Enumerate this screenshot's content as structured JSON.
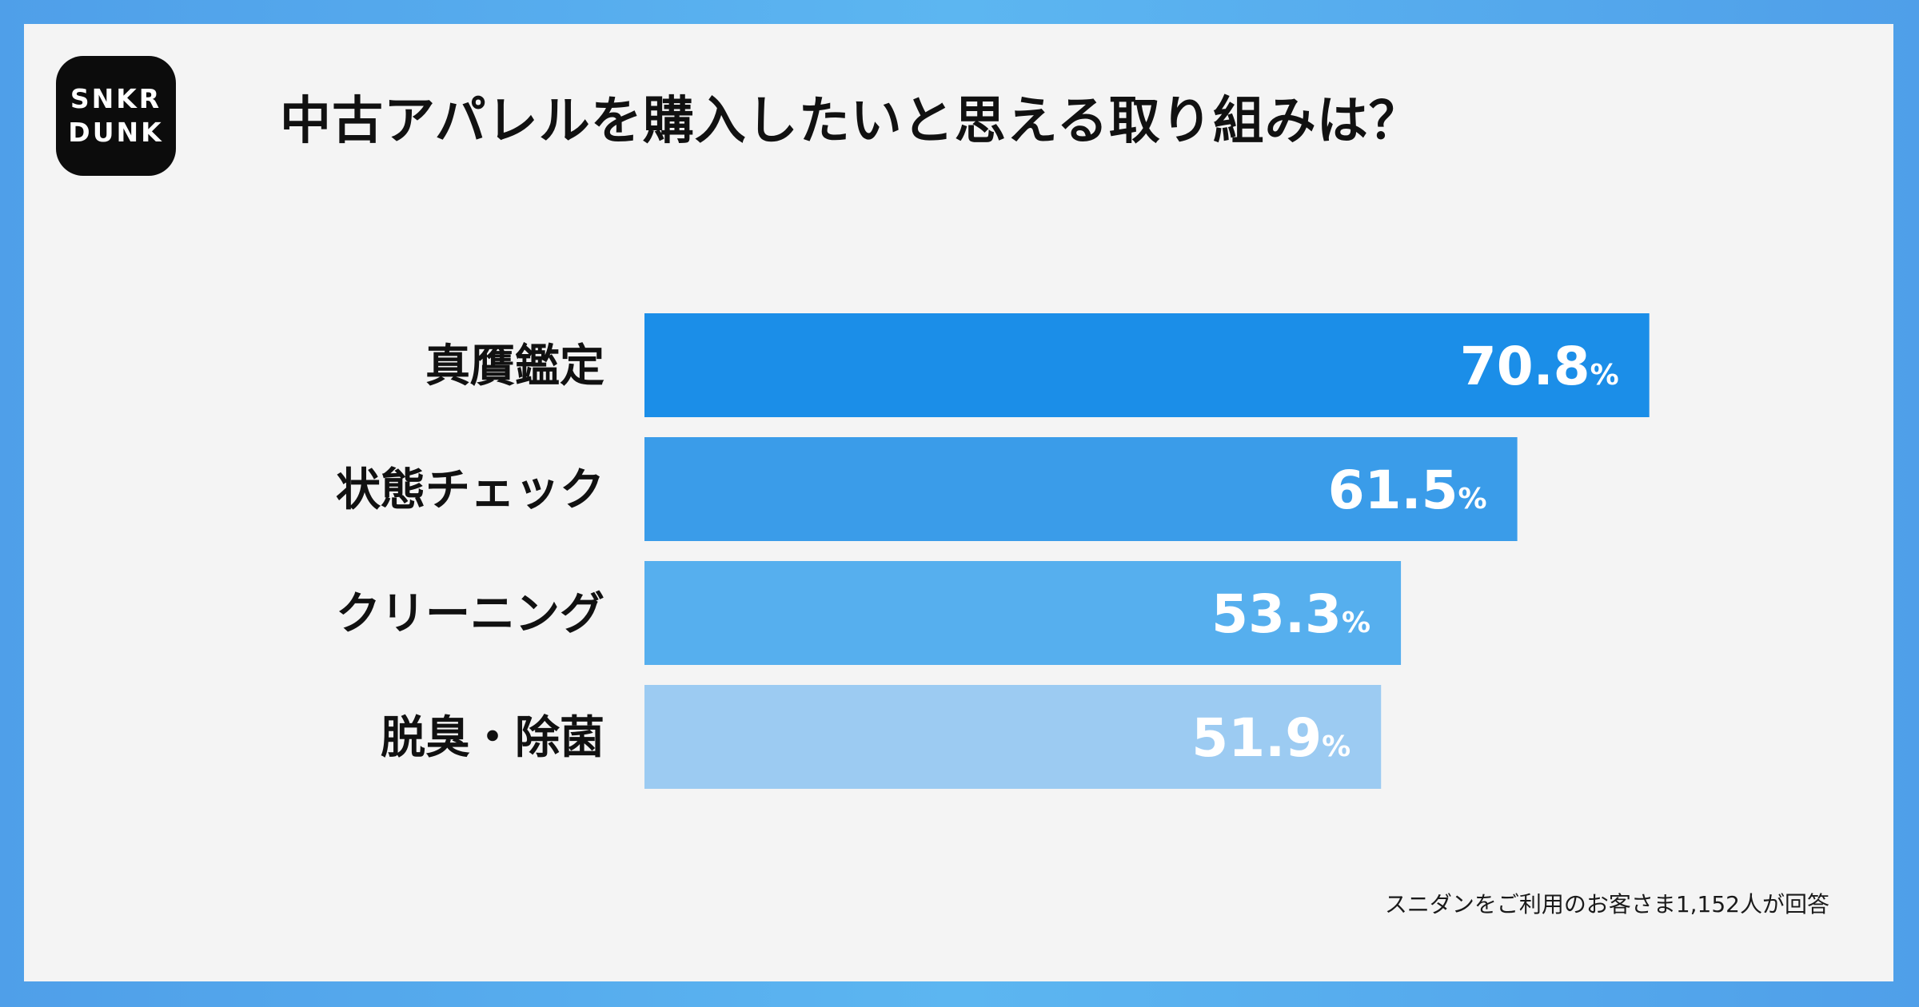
{
  "logo": {
    "line1": "SNKR",
    "line2": "DUNK"
  },
  "colors": {
    "bars": [
      "#1b8ee8",
      "#3a9ce9",
      "#56afee",
      "#9ccbf2"
    ],
    "label": "#111111",
    "value": "#ffffff"
  },
  "chart_data": {
    "type": "bar",
    "orientation": "horizontal",
    "title": "中古アパレルを購入したいと思える取り組みは？",
    "categories": [
      "真贋鑑定",
      "状態チェック",
      "クリーニング",
      "脱臭・除菌"
    ],
    "values": [
      70.8,
      61.5,
      53.3,
      51.9
    ],
    "value_labels": [
      "70.8",
      "61.5",
      "53.3",
      "51.9"
    ],
    "unit": "%",
    "xlim": [
      0,
      100
    ],
    "grid": false,
    "legend": "none"
  },
  "footnote": "スニダンをご利用のお客さま1,152人が回答"
}
